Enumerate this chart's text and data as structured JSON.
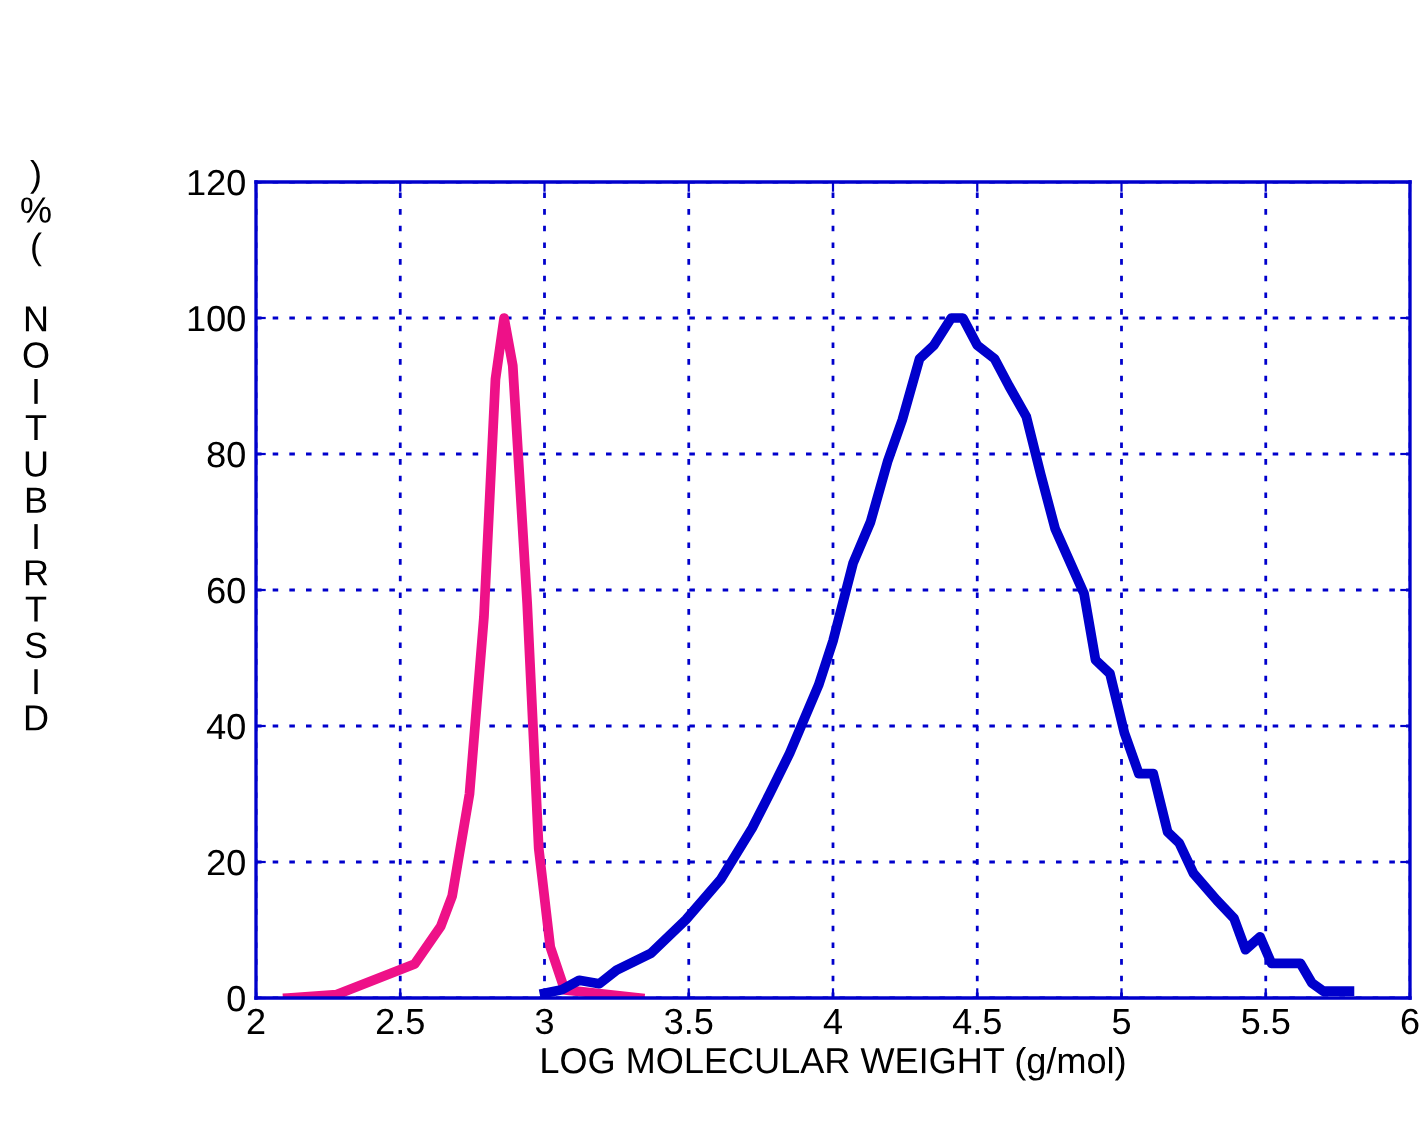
{
  "chart_data": {
    "type": "line",
    "xlabel": "LOG MOLECULAR WEIGHT (g/mol)",
    "ylabel": ")\n%\n(\n\nN\nO\nI\nT\nU\nB\nI\nR\nT\nS\nI\nD",
    "xlim": [
      2,
      6
    ],
    "xticks": [
      2,
      2.5,
      3,
      3.5,
      4,
      4.5,
      5,
      5.5,
      6
    ],
    "ylim": [
      0,
      120
    ],
    "yticks": [
      0,
      20,
      40,
      60,
      80,
      100,
      120
    ],
    "grid": true,
    "marker": "none",
    "line_style": "solid",
    "series": [
      {
        "color": "#ee1188",
        "x": [
          2.11,
          2.28,
          2.55,
          2.64,
          2.68,
          2.74,
          2.79,
          2.83,
          2.86,
          2.89,
          2.94,
          2.98,
          3.02,
          3.07,
          3.33
        ],
        "values": [
          0,
          0.5,
          5,
          10.5,
          15,
          30,
          56,
          91,
          100,
          93,
          58,
          22,
          7.5,
          1.2,
          0
        ]
      },
      {
        "color": "#0000cc",
        "x": [
          3.0,
          3.06,
          3.12,
          3.19,
          3.25,
          3.37,
          3.49,
          3.61,
          3.72,
          3.78,
          3.85,
          3.95,
          4.0,
          4.07,
          4.13,
          4.19,
          4.24,
          4.3,
          4.35,
          4.41,
          4.45,
          4.5,
          4.56,
          4.61,
          4.67,
          4.72,
          4.77,
          4.87,
          4.91,
          4.96,
          5.01,
          5.06,
          5.11,
          5.16,
          5.2,
          5.25,
          5.33,
          5.39,
          5.43,
          5.48,
          5.52,
          5.62,
          5.66,
          5.7,
          5.79
        ],
        "values": [
          0.7,
          1.2,
          2.6,
          2.1,
          4.1,
          6.6,
          11.5,
          17.4,
          25,
          30,
          36,
          46,
          52.5,
          64,
          70,
          79,
          85,
          94,
          96,
          100,
          100,
          96,
          94,
          90,
          85.5,
          77,
          69,
          59.5,
          49.7,
          47.7,
          39,
          33,
          33,
          24.4,
          22.8,
          18.3,
          14.4,
          11.7,
          7.1,
          9,
          5.1,
          5.1,
          2.2,
          1,
          1
        ]
      }
    ]
  }
}
